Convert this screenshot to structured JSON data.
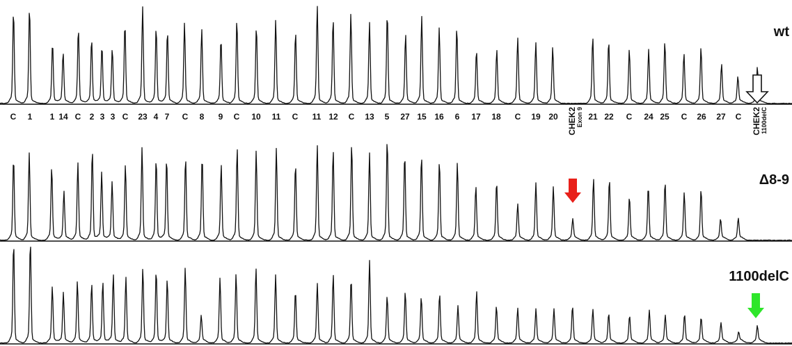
{
  "chart_data": {
    "type": "line",
    "title": "",
    "xlabel": "",
    "ylabel": "",
    "grid": false,
    "probe_labels": [
      "C",
      "1",
      "1",
      "14",
      "C",
      "2",
      "3",
      "3",
      "C",
      "23",
      "4",
      "7",
      "C",
      "8",
      "9",
      "C",
      "10",
      "11",
      "C",
      "11",
      "12",
      "C",
      "13",
      "5",
      "27",
      "15",
      "16",
      "6",
      "17",
      "18",
      "C",
      "19",
      "20",
      "CHEK2",
      "21",
      "22",
      "C",
      "24",
      "25",
      "C",
      "26",
      "27",
      "C",
      "CHEK2"
    ],
    "probe_sublabels": {
      "33": "Exon 9",
      "43": "1100delC"
    },
    "panels": [
      {
        "label": "wt",
        "heights": [
          0.93,
          0.97,
          0.6,
          0.5,
          0.75,
          0.64,
          0.57,
          0.54,
          0.8,
          0.97,
          0.76,
          0.72,
          0.8,
          0.74,
          0.64,
          0.84,
          0.77,
          0.83,
          0.71,
          0.98,
          0.85,
          0.9,
          0.81,
          0.91,
          0.69,
          0.87,
          0.75,
          0.76,
          0.52,
          0.53,
          0.65,
          0.6,
          0.55,
          0.0,
          0.66,
          0.62,
          0.53,
          0.53,
          0.61,
          0.49,
          0.55,
          0.38,
          0.25,
          0.35
        ],
        "markers": [
          {
            "index": 43,
            "style": "hollow-white"
          }
        ]
      },
      {
        "label": "Δ8-9",
        "heights": [
          0.75,
          0.79,
          0.66,
          0.43,
          0.7,
          0.82,
          0.61,
          0.52,
          0.68,
          0.84,
          0.74,
          0.74,
          0.75,
          0.76,
          0.68,
          0.84,
          0.81,
          0.83,
          0.69,
          0.86,
          0.82,
          0.88,
          0.79,
          0.92,
          0.78,
          0.77,
          0.72,
          0.7,
          0.48,
          0.52,
          0.31,
          0.51,
          0.47,
          0.17,
          0.55,
          0.55,
          0.38,
          0.48,
          0.52,
          0.42,
          0.45,
          0.17,
          0.18,
          0.0
        ],
        "markers": [
          {
            "index": 33,
            "style": "red"
          }
        ]
      },
      {
        "label": "1100delC",
        "heights": [
          0.95,
          0.97,
          0.52,
          0.46,
          0.57,
          0.55,
          0.57,
          0.64,
          0.61,
          0.7,
          0.68,
          0.59,
          0.7,
          0.24,
          0.6,
          0.64,
          0.7,
          0.63,
          0.48,
          0.55,
          0.64,
          0.6,
          0.77,
          0.43,
          0.47,
          0.42,
          0.45,
          0.33,
          0.47,
          0.33,
          0.31,
          0.3,
          0.3,
          0.33,
          0.3,
          0.26,
          0.24,
          0.29,
          0.24,
          0.25,
          0.22,
          0.17,
          0.08,
          0.14
        ],
        "markers": [
          {
            "index": 43,
            "style": "green"
          }
        ]
      }
    ]
  }
}
